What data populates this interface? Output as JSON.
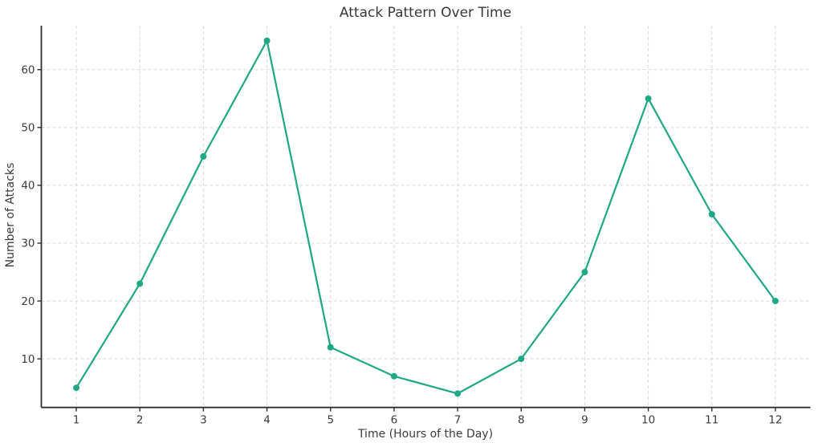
{
  "chart_data": {
    "type": "line",
    "title": "Attack Pattern Over Time",
    "xlabel": "Time (Hours of the Day)",
    "ylabel": "Number of Attacks",
    "x": [
      1,
      2,
      3,
      4,
      5,
      6,
      7,
      8,
      9,
      10,
      11,
      12
    ],
    "values": [
      5,
      23,
      45,
      65,
      12,
      7,
      4,
      10,
      25,
      55,
      35,
      20
    ],
    "x_ticks": [
      "1",
      "2",
      "3",
      "4",
      "5",
      "6",
      "7",
      "8",
      "9",
      "10",
      "11",
      "12"
    ],
    "y_ticks": [
      "10",
      "20",
      "30",
      "40",
      "50",
      "60"
    ],
    "y_tick_values": [
      10,
      20,
      30,
      40,
      50,
      60
    ],
    "xlim": [
      0.45,
      12.55
    ],
    "ylim": [
      1.6,
      67.6
    ],
    "grid": true,
    "grid_style": "dashed",
    "legend": "none",
    "line_color": "#1ea886",
    "marker_color": "#1ea886",
    "grid_color": "#cccccc",
    "spine_color": "#2e2e2e",
    "tick_text_color": "#3a3a3a",
    "background_color": "#ffffff"
  }
}
